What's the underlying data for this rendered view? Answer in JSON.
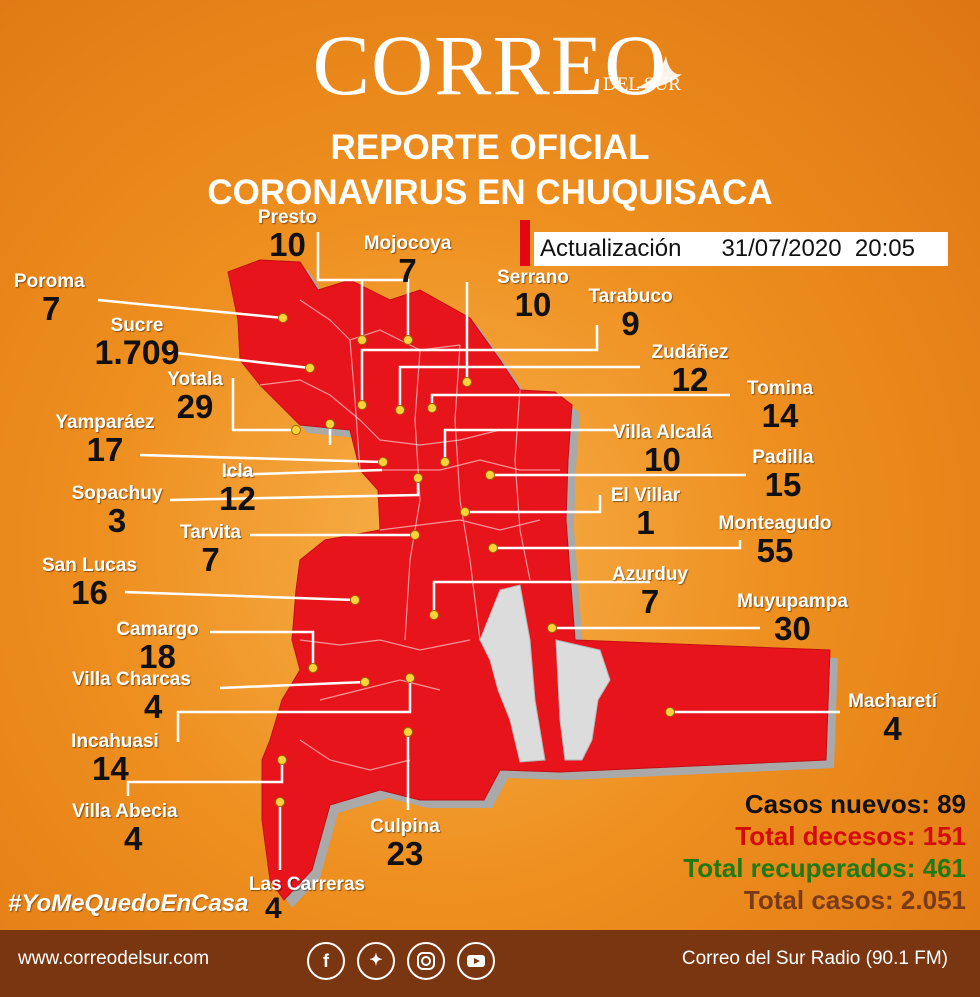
{
  "header": {
    "brand": "CORREO",
    "brand_sub": "DEL SUR",
    "title_line1": "REPORTE OFICIAL",
    "title_line2": "CORONAVIRUS EN CHUQUISACA",
    "update_label": "Actualización",
    "update_date": "31/07/2020",
    "update_time": "20:05"
  },
  "municipalities": [
    {
      "name": "Presto",
      "count": "10"
    },
    {
      "name": "Mojocoya",
      "count": "7"
    },
    {
      "name": "Serrano",
      "count": "10"
    },
    {
      "name": "Tarabuco",
      "count": "9"
    },
    {
      "name": "Poroma",
      "count": "7"
    },
    {
      "name": "Sucre",
      "count": "1.709"
    },
    {
      "name": "Zudáñez",
      "count": "12"
    },
    {
      "name": "Yotala",
      "count": "29"
    },
    {
      "name": "Tomina",
      "count": "14"
    },
    {
      "name": "Yamparáez",
      "count": "17"
    },
    {
      "name": "Villa Alcalá",
      "count": "10"
    },
    {
      "name": "Icla",
      "count": "12"
    },
    {
      "name": "Padilla",
      "count": "15"
    },
    {
      "name": "Sopachuy",
      "count": "3"
    },
    {
      "name": "El Villar",
      "count": "1"
    },
    {
      "name": "Tarvita",
      "count": "7"
    },
    {
      "name": "Monteagudo",
      "count": "55"
    },
    {
      "name": "San Lucas",
      "count": "16"
    },
    {
      "name": "Azurduy",
      "count": "7"
    },
    {
      "name": "Muyupampa",
      "count": "30"
    },
    {
      "name": "Camargo",
      "count": "18"
    },
    {
      "name": "Villa Charcas",
      "count": "4"
    },
    {
      "name": "Macharetí",
      "count": "4"
    },
    {
      "name": "Incahuasi",
      "count": "14"
    },
    {
      "name": "Villa Abecia",
      "count": "4"
    },
    {
      "name": "Culpina",
      "count": "23"
    },
    {
      "name": "Las Carreras",
      "count": "4"
    }
  ],
  "stats": {
    "new_cases": "Casos nuevos: 89",
    "deaths": "Total decesos: 151",
    "recovered": "Total recuperados: 461",
    "total": "Total casos: 2.051"
  },
  "colors": {
    "new_cases": "#111111",
    "deaths": "#d40b0b",
    "recovered": "#1f7a14",
    "total": "#7a3a16",
    "map_fill": "#e8141b",
    "background": "#ee8f1f"
  },
  "hashtag": "#YoMeQuedoEnCasa",
  "footer": {
    "website": "www.correodelsur.com",
    "radio": "Correo del Sur Radio (90.1 FM)",
    "social_icons": [
      "facebook-icon",
      "twitter-icon",
      "instagram-icon",
      "youtube-icon"
    ]
  }
}
